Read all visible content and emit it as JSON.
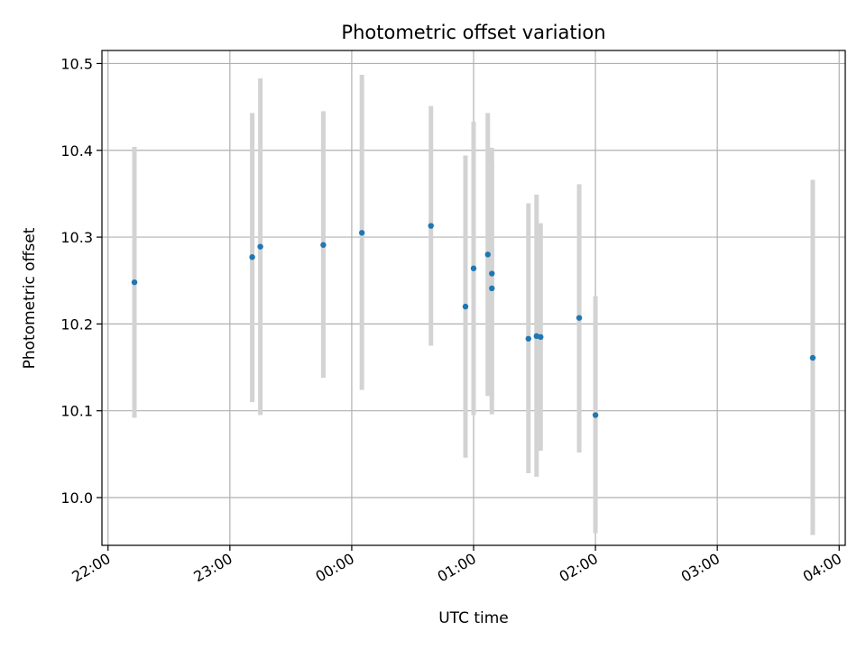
{
  "chart_data": {
    "type": "scatter",
    "title": "Photometric offset variation",
    "xlabel": "UTC time",
    "ylabel": "Photometric offset",
    "x_tick_labels": [
      "22:00",
      "23:00",
      "00:00",
      "01:00",
      "02:00",
      "03:00",
      "04:00"
    ],
    "y_tick_labels": [
      "10.0",
      "10.1",
      "10.2",
      "10.3",
      "10.4",
      "10.5"
    ],
    "y_ticks": [
      10.0,
      10.1,
      10.2,
      10.3,
      10.4,
      10.5
    ],
    "xlim": [
      "21:57",
      "04:03"
    ],
    "ylim": [
      9.945,
      10.515
    ],
    "grid": true,
    "colors": {
      "point": "#1f77b4",
      "errorbar": "#d3d3d3",
      "grid": "#b0b0b0"
    },
    "series": [
      {
        "points": [
          {
            "x": "22:13",
            "y": 10.248,
            "ylow": 10.092,
            "yhigh": 10.404
          },
          {
            "x": "23:11",
            "y": 10.277,
            "ylow": 10.11,
            "yhigh": 10.443
          },
          {
            "x": "23:15",
            "y": 10.289,
            "ylow": 10.095,
            "yhigh": 10.483
          },
          {
            "x": "23:46",
            "y": 10.291,
            "ylow": 10.138,
            "yhigh": 10.445
          },
          {
            "x": "00:05",
            "y": 10.305,
            "ylow": 10.124,
            "yhigh": 10.487
          },
          {
            "x": "00:39",
            "y": 10.313,
            "ylow": 10.175,
            "yhigh": 10.451
          },
          {
            "x": "00:56",
            "y": 10.22,
            "ylow": 10.046,
            "yhigh": 10.394
          },
          {
            "x": "01:00",
            "y": 10.264,
            "ylow": 10.095,
            "yhigh": 10.433
          },
          {
            "x": "01:07",
            "y": 10.28,
            "ylow": 10.117,
            "yhigh": 10.443
          },
          {
            "x": "01:09",
            "y": 10.258,
            "ylow": 10.113,
            "yhigh": 10.403
          },
          {
            "x": "01:09",
            "y": 10.241,
            "ylow": 10.096,
            "yhigh": 10.386
          },
          {
            "x": "01:27",
            "y": 10.183,
            "ylow": 10.028,
            "yhigh": 10.339
          },
          {
            "x": "01:31",
            "y": 10.186,
            "ylow": 10.024,
            "yhigh": 10.349
          },
          {
            "x": "01:33",
            "y": 10.185,
            "ylow": 10.054,
            "yhigh": 10.316
          },
          {
            "x": "01:52",
            "y": 10.207,
            "ylow": 10.052,
            "yhigh": 10.361
          },
          {
            "x": "02:00",
            "y": 10.095,
            "ylow": 9.959,
            "yhigh": 10.232
          },
          {
            "x": "03:47",
            "y": 10.161,
            "ylow": 9.957,
            "yhigh": 10.366
          }
        ]
      }
    ]
  }
}
